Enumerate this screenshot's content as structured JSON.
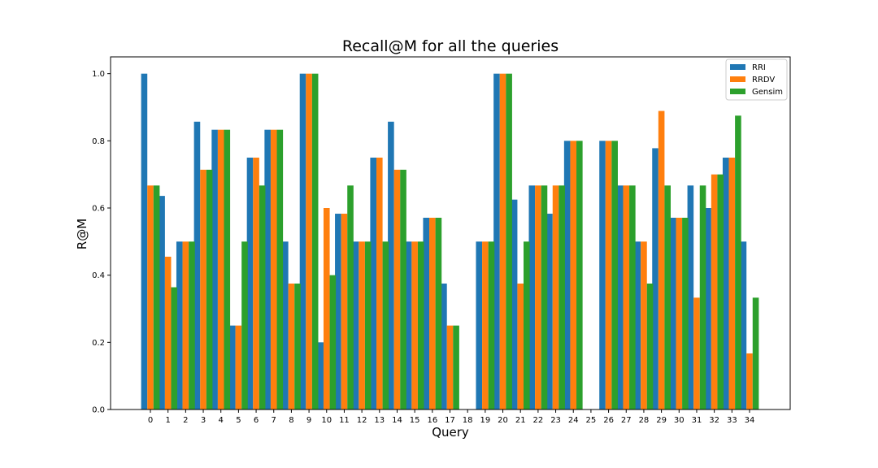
{
  "chart_data": {
    "type": "bar",
    "title": "Recall@M for all the queries",
    "xlabel": "Query",
    "ylabel": "R@M",
    "ylim": [
      0,
      1.05
    ],
    "yticks": [
      "0.0",
      "0.2",
      "0.4",
      "0.6",
      "0.8",
      "1.0"
    ],
    "categories": [
      "0",
      "1",
      "2",
      "3",
      "4",
      "5",
      "6",
      "7",
      "8",
      "9",
      "10",
      "11",
      "12",
      "13",
      "14",
      "15",
      "16",
      "17",
      "18",
      "19",
      "20",
      "21",
      "22",
      "23",
      "24",
      "25",
      "26",
      "27",
      "28",
      "29",
      "30",
      "31",
      "32",
      "33",
      "34"
    ],
    "legend_position": "top-right",
    "series": [
      {
        "name": "RRI",
        "color": "#1f77b4",
        "values": [
          1.0,
          0.636,
          0.5,
          0.857,
          0.833,
          0.25,
          0.75,
          0.833,
          0.5,
          1.0,
          0.2,
          0.583,
          0.5,
          0.75,
          0.857,
          0.5,
          0.571,
          0.375,
          0,
          0.5,
          1.0,
          0.625,
          0.667,
          0.583,
          0.8,
          0,
          0.8,
          0.667,
          0.5,
          0.778,
          0.571,
          0.667,
          0.6,
          0.75,
          0.5
        ]
      },
      {
        "name": "RRDV",
        "color": "#ff7f0e",
        "values": [
          0.667,
          0.455,
          0.5,
          0.714,
          0.833,
          0.25,
          0.75,
          0.833,
          0.375,
          1.0,
          0.6,
          0.583,
          0.5,
          0.75,
          0.714,
          0.5,
          0.571,
          0.25,
          0,
          0.5,
          1.0,
          0.375,
          0.667,
          0.667,
          0.8,
          0,
          0.8,
          0.667,
          0.5,
          0.889,
          0.571,
          0.333,
          0.7,
          0.75,
          0.167
        ]
      },
      {
        "name": "Gensim",
        "color": "#2ca02c",
        "values": [
          0.667,
          0.364,
          0.5,
          0.714,
          0.833,
          0.5,
          0.667,
          0.833,
          0.375,
          1.0,
          0.4,
          0.667,
          0.5,
          0.5,
          0.714,
          0.5,
          0.571,
          0.25,
          0,
          0.5,
          1.0,
          0.5,
          0.667,
          0.667,
          0.8,
          0,
          0.8,
          0.667,
          0.375,
          0.667,
          0.571,
          0.667,
          0.7,
          0.875,
          0.333
        ]
      }
    ]
  }
}
